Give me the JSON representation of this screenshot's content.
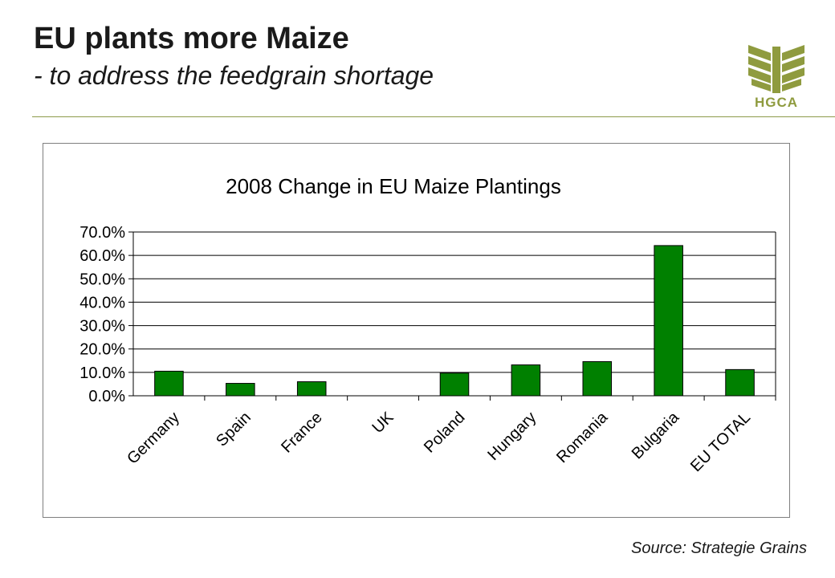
{
  "slide": {
    "title": "EU plants more Maize",
    "subtitle": "- to address the feedgrain shortage",
    "source": "Source: Strategie Grains",
    "logo_text": "HGCA"
  },
  "colors": {
    "bar": "#008000",
    "bar_border": "#000000",
    "grid": "#000000",
    "rule": "#8c9a4a",
    "logo": "#8f9b3f"
  },
  "chart_data": {
    "type": "bar",
    "title": "2008 Change in EU Maize Plantings",
    "xlabel": "",
    "ylabel": "",
    "categories": [
      "Germany",
      "Spain",
      "France",
      "UK",
      "Poland",
      "Hungary",
      "Romania",
      "Bulgaria",
      "EU TOTAL"
    ],
    "values": [
      10.5,
      5.3,
      6.0,
      0.0,
      9.7,
      13.2,
      14.6,
      64.2,
      11.2
    ],
    "ylim": [
      0,
      70
    ],
    "yticks": [
      "0.0%",
      "10.0%",
      "20.0%",
      "30.0%",
      "40.0%",
      "50.0%",
      "60.0%",
      "70.0%"
    ],
    "grid": true,
    "legend": "none"
  }
}
